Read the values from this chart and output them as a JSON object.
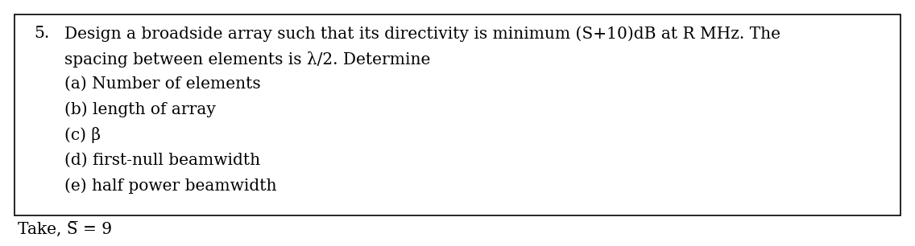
{
  "background_color": "#ffffff",
  "border_color": "#000000",
  "border_linewidth": 1.2,
  "number": "5.",
  "line1": "Design a broadside array such that its directivity is minimum (S+10)dB at R MHz. The",
  "line2": "spacing between elements is λ/2. Determine",
  "line3a": "(a) Number of elements",
  "line3b": "(b) length of array",
  "line3c": "(c) β",
  "line3d": "(d) first-null beamwidth",
  "line3e": "(e) half power beamwidth",
  "bottom_text": "Take, S̅ = 9",
  "font_size": 14.5,
  "text_color": "#000000",
  "figwidth": 11.36,
  "figheight": 3.06,
  "dpi": 100
}
